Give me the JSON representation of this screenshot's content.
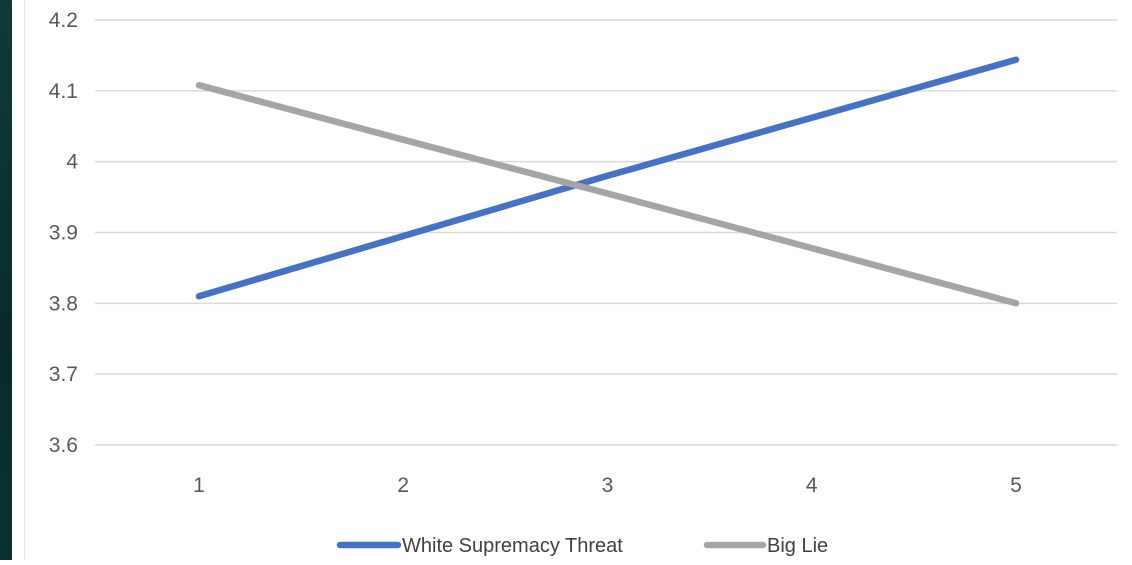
{
  "chart_data": {
    "type": "line",
    "title": "",
    "xlabel": "",
    "ylabel": "",
    "categories": [
      "1",
      "2",
      "3",
      "4",
      "5"
    ],
    "x": [
      1,
      2,
      3,
      4,
      5
    ],
    "ylim": [
      3.6,
      4.2
    ],
    "yticks": [
      "3.6",
      "3.7",
      "3.8",
      "3.9",
      "4",
      "4.1",
      "4.2"
    ],
    "grid": true,
    "legend_position": "bottom",
    "series": [
      {
        "name": "White Supremacy Threat",
        "color": "#4472c4",
        "values": [
          3.81,
          3.895,
          3.98,
          4.062,
          4.144
        ]
      },
      {
        "name": "Big Lie",
        "color": "#a5a5a5",
        "values": [
          4.108,
          4.031,
          3.955,
          3.878,
          3.8
        ]
      }
    ]
  }
}
